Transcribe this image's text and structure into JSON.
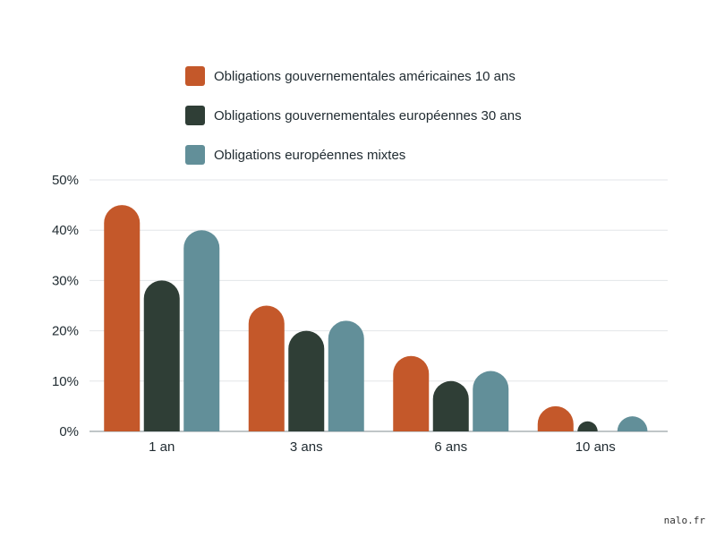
{
  "chart_data": {
    "type": "bar",
    "categories": [
      "1 an",
      "3 ans",
      "6 ans",
      "10 ans"
    ],
    "series": [
      {
        "name": "Obligations gouvernementales américaines 10 ans",
        "values": [
          45,
          25,
          15,
          5
        ],
        "color": "#c4582a"
      },
      {
        "name": "Obligations gouvernementales européennes 30 ans",
        "values": [
          30,
          20,
          10,
          2
        ],
        "color": "#2f3e36"
      },
      {
        "name": "Obligations européennes mixtes",
        "values": [
          40,
          22,
          12,
          3
        ],
        "color": "#628f99"
      }
    ],
    "ylim": [
      0,
      50
    ],
    "yticks": [
      "0%",
      "10%",
      "20%",
      "30%",
      "40%",
      "50%"
    ],
    "grid": true,
    "legend_position": "top"
  },
  "watermark": "nalo.fr"
}
